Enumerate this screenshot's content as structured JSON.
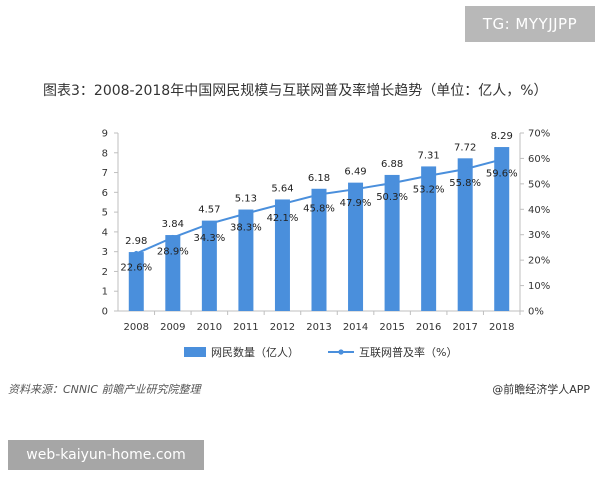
{
  "watermarks": {
    "top": "TG: MYYJJPP",
    "bottom": "web-kaiyun-home.com"
  },
  "title": "图表3：2008-2018年中国网民规模与互联网普及率增长趋势（单位：亿人，%）",
  "source": "资料来源：CNNIC 前瞻产业研究院整理",
  "credit": "@前瞻经济学人APP",
  "colors": {
    "bar": "#4a8fdc",
    "line": "#4a8fdc",
    "axis": "#bfbfbf"
  },
  "chart_data": {
    "type": "bar",
    "title": "图表3：2008-2018年中国网民规模与互联网普及率增长趋势（单位：亿人，%）",
    "categories": [
      "2008",
      "2009",
      "2010",
      "2011",
      "2012",
      "2013",
      "2014",
      "2015",
      "2016",
      "2017",
      "2018"
    ],
    "series": [
      {
        "name": "网民数量（亿人）",
        "type": "bar",
        "axis": "left",
        "values": [
          2.98,
          3.84,
          4.57,
          5.13,
          5.64,
          6.18,
          6.49,
          6.88,
          7.31,
          7.72,
          8.29
        ],
        "labels": [
          "2.98",
          "3.84",
          "4.57",
          "5.13",
          "5.64",
          "6.18",
          "6.49",
          "6.88",
          "7.31",
          "7.72",
          "8.29"
        ]
      },
      {
        "name": "互联网普及率（%）",
        "type": "line",
        "axis": "right",
        "values": [
          22.6,
          28.9,
          34.3,
          38.3,
          42.1,
          45.8,
          47.9,
          50.3,
          53.2,
          55.8,
          59.6
        ],
        "labels": [
          "22.6%",
          "28.9%",
          "34.3%",
          "38.3%",
          "42.1%",
          "45.8%",
          "47.9%",
          "50.3%",
          "53.2%",
          "55.8%",
          "59.6%"
        ]
      }
    ],
    "y_left": {
      "ylim": [
        0,
        9
      ],
      "ticks": [
        "0",
        "1",
        "2",
        "3",
        "4",
        "5",
        "6",
        "7",
        "8",
        "9"
      ]
    },
    "y_right": {
      "ylim": [
        0,
        70
      ],
      "ticks": [
        "0%",
        "10%",
        "20%",
        "30%",
        "40%",
        "50%",
        "60%",
        "70%"
      ]
    },
    "grid": false,
    "legend": "bottom"
  }
}
